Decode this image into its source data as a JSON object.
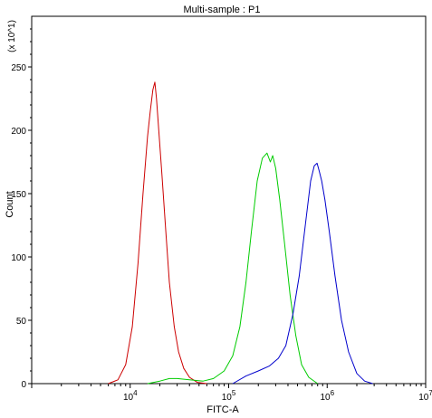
{
  "chart_data": {
    "type": "line",
    "title": "Multi-sample : P1",
    "xlabel": "FITC-A",
    "ylabel": "Count",
    "y_multiplier_label": "(x 10^1)",
    "x_scale": "log",
    "xlim": [
      1000,
      10000000
    ],
    "ylim": [
      0,
      290
    ],
    "x_ticks": [
      {
        "value": 10000,
        "label": "10^4"
      },
      {
        "value": 100000,
        "label": "10^5"
      },
      {
        "value": 1000000,
        "label": "10^6"
      },
      {
        "value": 10000000,
        "label": "10^7"
      }
    ],
    "y_ticks": [
      0,
      50,
      100,
      150,
      200,
      250
    ],
    "grid": false,
    "legend": "none",
    "series": [
      {
        "color": "#cc0000",
        "x": [
          6000,
          7500,
          9000,
          10500,
          12000,
          13500,
          15000,
          16000,
          17000,
          17800,
          18500,
          19500,
          21000,
          23000,
          25000,
          28000,
          31000,
          35000,
          40000,
          48000,
          60000
        ],
        "y": [
          0,
          3,
          15,
          45,
          95,
          150,
          195,
          215,
          232,
          238,
          225,
          200,
          165,
          120,
          80,
          45,
          25,
          12,
          5,
          1,
          0
        ]
      },
      {
        "color": "#00cc00",
        "x": [
          15000,
          20000,
          25000,
          30000,
          40000,
          55000,
          70000,
          90000,
          110000,
          130000,
          150000,
          170000,
          195000,
          220000,
          245000,
          265000,
          280000,
          300000,
          330000,
          370000,
          420000,
          480000,
          550000,
          650000,
          800000
        ],
        "y": [
          0,
          2,
          4,
          4,
          3,
          2,
          4,
          10,
          22,
          45,
          80,
          120,
          160,
          178,
          182,
          175,
          180,
          170,
          145,
          110,
          70,
          38,
          15,
          5,
          0
        ]
      },
      {
        "color": "#0000cc",
        "x": [
          110000,
          150000,
          200000,
          260000,
          320000,
          380000,
          450000,
          520000,
          600000,
          680000,
          740000,
          790000,
          830000,
          880000,
          950000,
          1050000,
          1200000,
          1400000,
          1650000,
          2000000,
          2400000,
          2900000
        ],
        "y": [
          0,
          6,
          10,
          14,
          20,
          30,
          55,
          85,
          125,
          160,
          172,
          174,
          168,
          160,
          145,
          120,
          85,
          50,
          25,
          8,
          2,
          0
        ]
      }
    ]
  }
}
